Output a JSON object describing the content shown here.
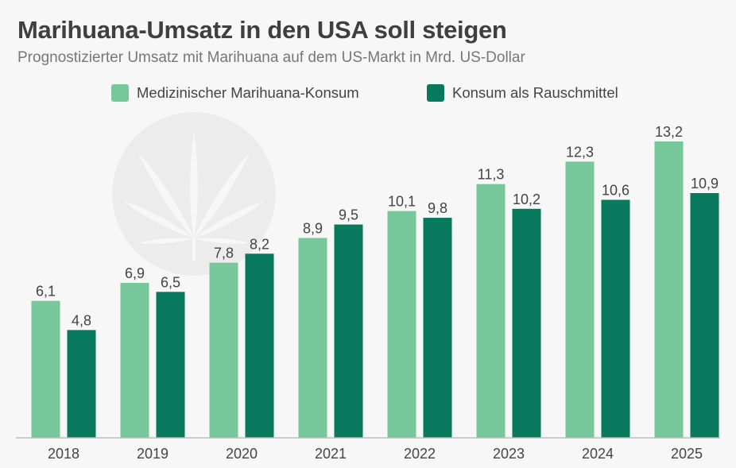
{
  "title": "Marihuana-Umsatz in den USA soll steigen",
  "subtitle": "Prognostizierter Umsatz mit Marihuana auf dem US-Markt in Mrd. US-Dollar",
  "watermark_icon": "cannabis-leaf-icon",
  "colors": {
    "medical": "#76c79a",
    "recreational": "#077a5d",
    "axis": "#bbbbbb",
    "label": "#444444"
  },
  "chart_data": {
    "type": "bar",
    "title": "Marihuana-Umsatz in den USA soll steigen",
    "subtitle": "Prognostizierter Umsatz mit Marihuana auf dem US-Markt in Mrd. US-Dollar",
    "xlabel": "",
    "ylabel": "",
    "ylim": [
      0,
      13.2
    ],
    "grid": false,
    "legend_position": "top-center",
    "categories": [
      "2018",
      "2019",
      "2020",
      "2021",
      "2022",
      "2023",
      "2024",
      "2025"
    ],
    "series": [
      {
        "name": "Medizinischer Marihuana-Konsum",
        "color": "#76c79a",
        "values": [
          6.1,
          6.9,
          7.8,
          8.9,
          10.1,
          11.3,
          12.3,
          13.2
        ],
        "labels": [
          "6,1",
          "6,9",
          "7,8",
          "8,9",
          "10,1",
          "11,3",
          "12,3",
          "13,2"
        ]
      },
      {
        "name": "Konsum als Rauschmittel",
        "color": "#077a5d",
        "values": [
          4.8,
          6.5,
          8.2,
          9.5,
          9.8,
          10.2,
          10.6,
          10.9
        ],
        "labels": [
          "4,8",
          "6,5",
          "8,2",
          "9,5",
          "9,8",
          "10,2",
          "10,6",
          "10,9"
        ]
      }
    ]
  }
}
